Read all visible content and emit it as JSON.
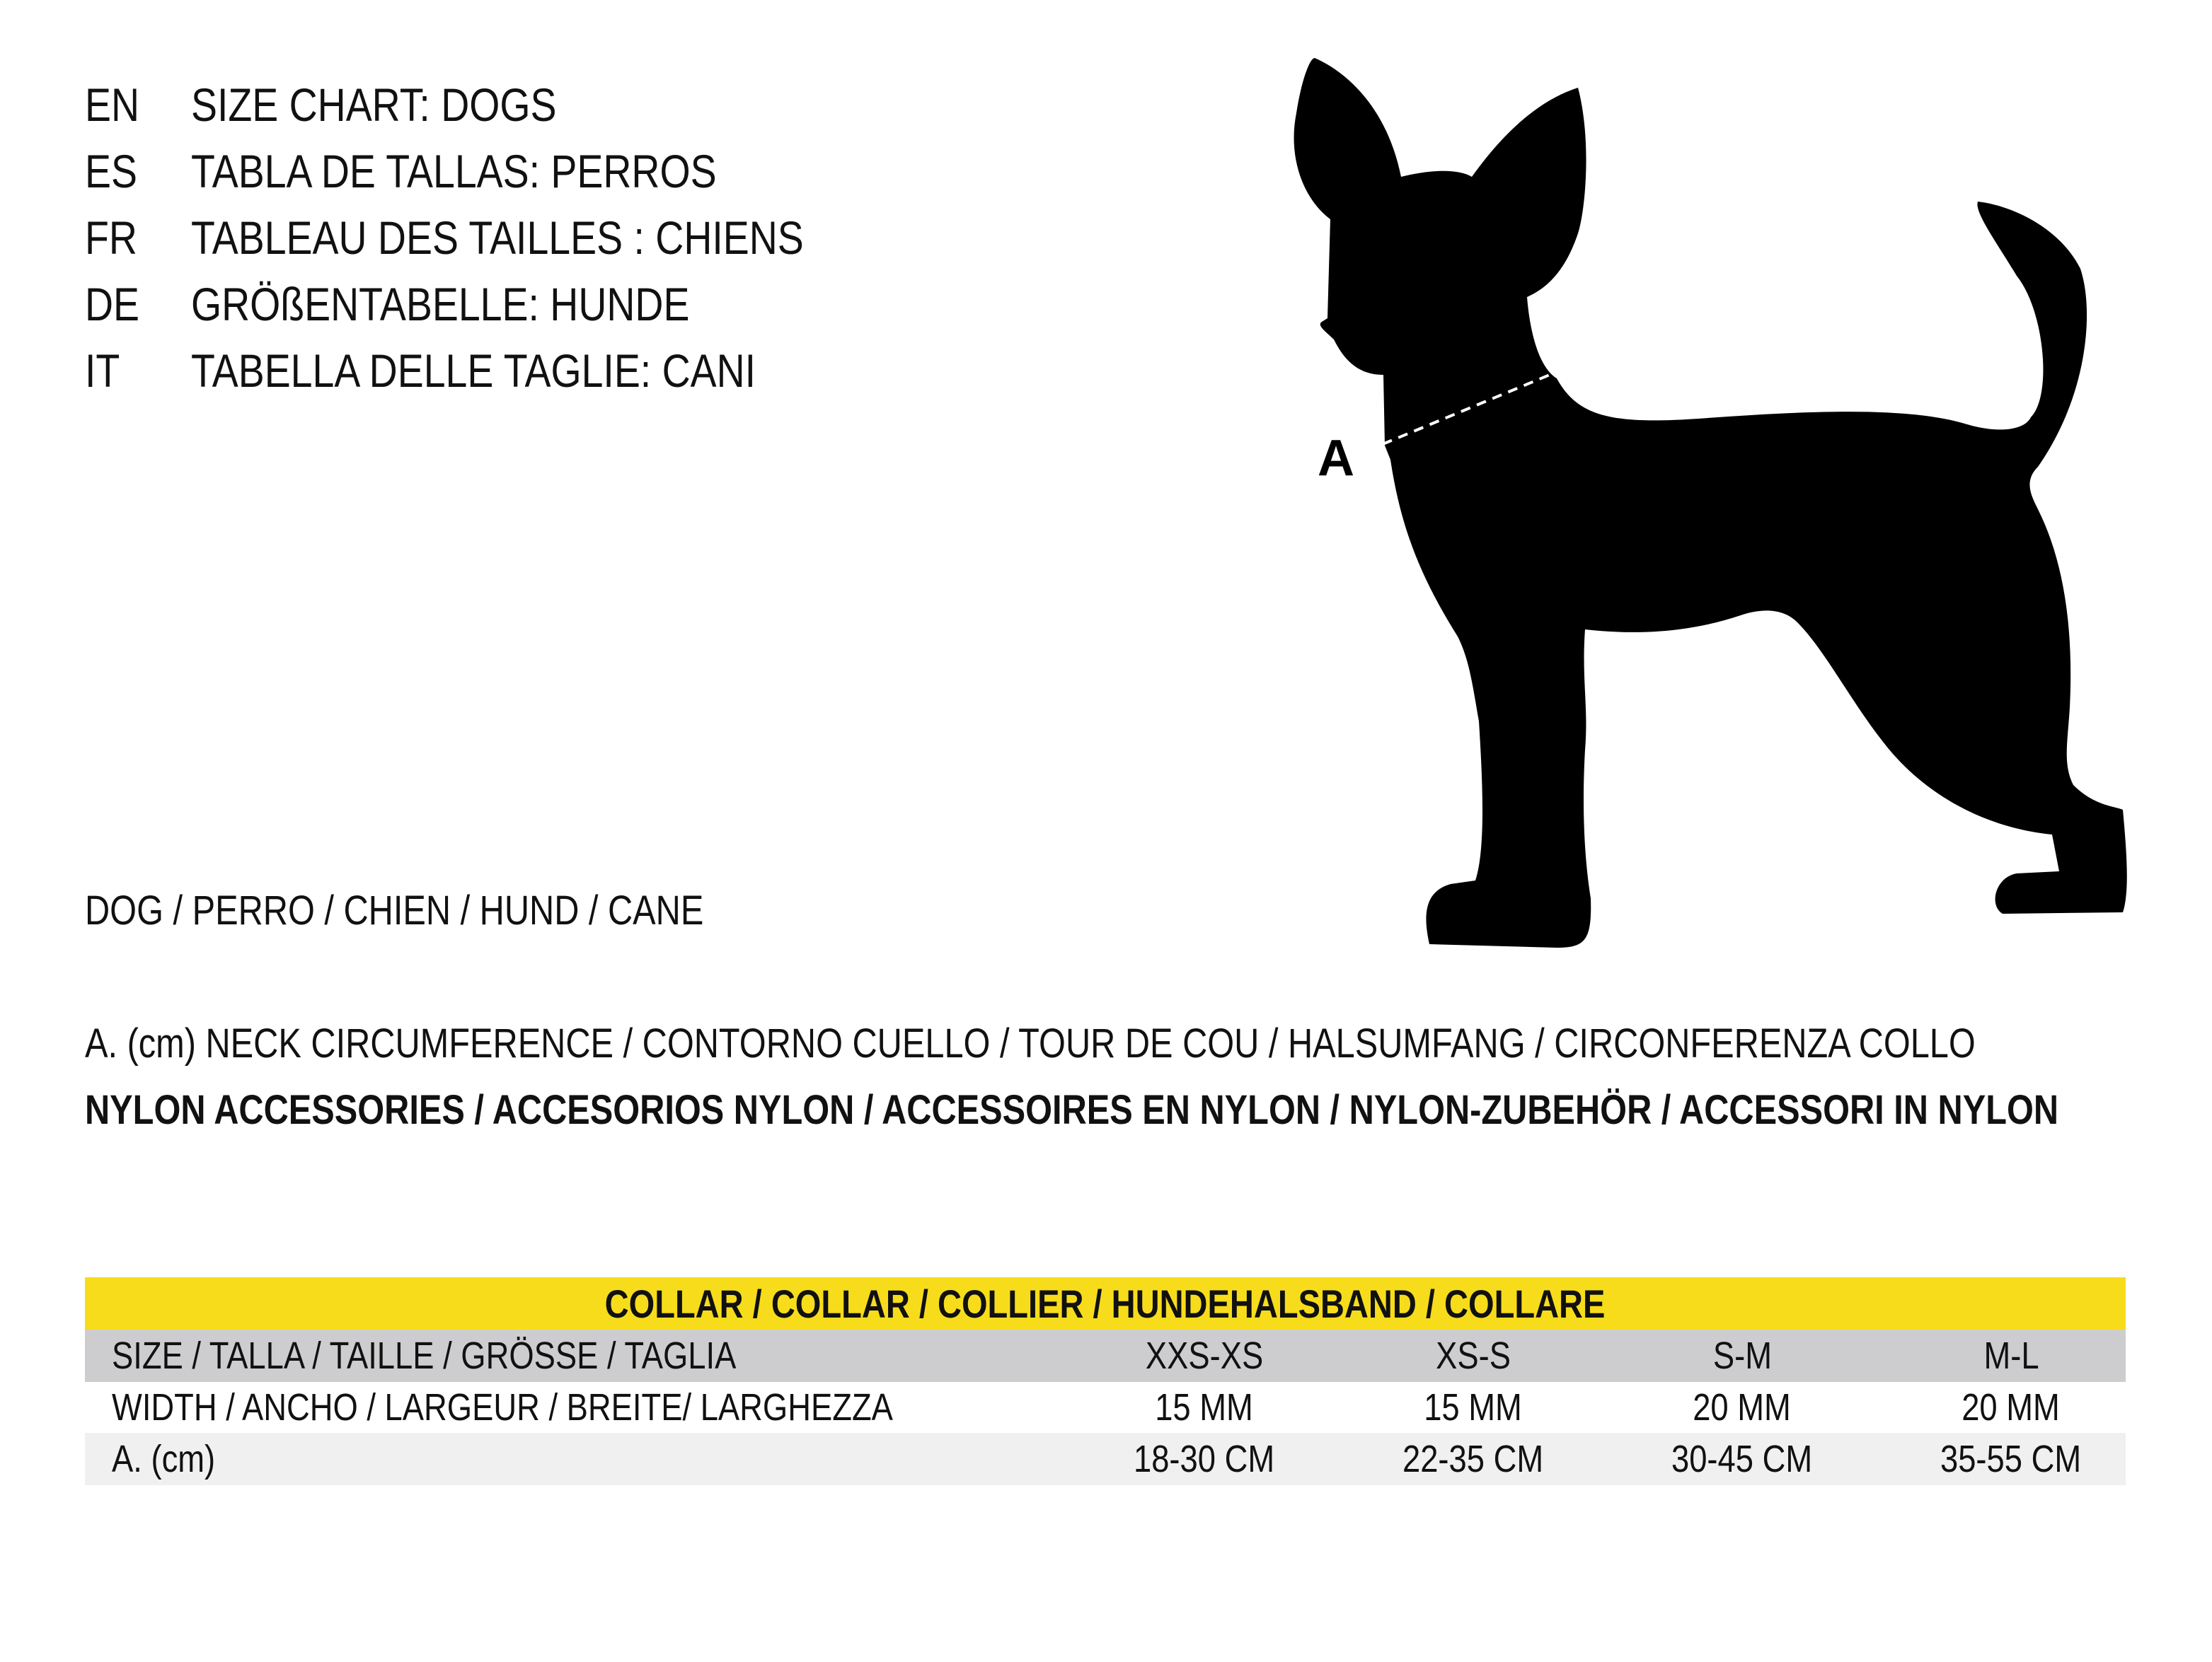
{
  "titles": [
    {
      "code": "EN",
      "text": "SIZE CHART: DOGS"
    },
    {
      "code": "ES",
      "text": "TABLA DE TALLAS: PERROS"
    },
    {
      "code": "FR",
      "text": "TABLEAU DES TAILLES : CHIENS"
    },
    {
      "code": "DE",
      "text": "GRÖßENTABELLE: HUNDE"
    },
    {
      "code": "IT",
      "text": "TABELLA DELLE TAGLIE: CANI"
    }
  ],
  "illustration": {
    "measure_label": "A",
    "icon": "dog-silhouette-icon"
  },
  "animal_line": "DOG / PERRO / CHIEN / HUND / CANE",
  "measure_line": "A. (cm) NECK CIRCUMFERENCE / CONTORNO CUELLO / TOUR DE COU / HALSUMFANG / CIRCONFERENZA COLLO",
  "material_line": "NYLON ACCESSORIES / ACCESORIOS NYLON / ACCESSOIRES EN NYLON / NYLON-ZUBEHÖR / ACCESSORI IN NYLON",
  "table": {
    "header": "COLLAR / COLLAR / COLLIER / HUNDEHALSBAND / COLLARE",
    "rows": [
      {
        "label": "SIZE / TALLA / TAILLE / GRÖSSE / TAGLIA",
        "values": [
          "XXS-XS",
          "XS-S",
          "S-M",
          "M-L"
        ]
      },
      {
        "label": "WIDTH / ANCHO / LARGEUR / BREITE/ LARGHEZZA",
        "values": [
          "15 MM",
          "15 MM",
          "20 MM",
          "20 MM"
        ]
      },
      {
        "label": "A. (cm)",
        "values": [
          "18-30 CM",
          "22-35 CM",
          "30-45 CM",
          "35-55 CM"
        ]
      }
    ]
  },
  "colors": {
    "header_bg": "#F7DC1B",
    "size_row_bg": "#CDCDCF",
    "width_row_bg": "#FFFFFF",
    "measure_row_bg": "#F0F0F0",
    "text": "#111111"
  }
}
